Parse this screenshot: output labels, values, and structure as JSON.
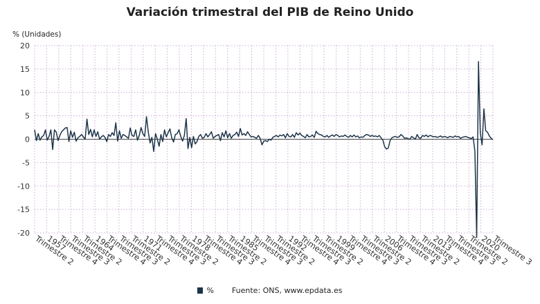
{
  "chart_data": {
    "type": "line",
    "title": "Variación trimestral del PIB de Reino Unido",
    "ylabel": "% (Unidades)",
    "xlabel": "",
    "ylim": [
      -20,
      20
    ],
    "yticks": [
      20,
      15,
      10,
      5,
      0,
      -5,
      -10,
      -15,
      -20
    ],
    "grid": true,
    "color": "#1d3449",
    "x_start": {
      "year": 1955,
      "quarter": 2
    },
    "x_end": {
      "year": 2022,
      "quarter": 3
    },
    "x_tick_labels": [
      "Trimestre 2",
      "1957",
      "Trimestre 4",
      "Trimestre 3",
      "Trimestre 2",
      "1964",
      "Trimestre 4",
      "Trimestre 3",
      "Trimestre 2",
      "1971",
      "Trimestre 4",
      "Trimestre 3",
      "Trimestre 2",
      "1978",
      "Trimestre 4",
      "Trimestre 3",
      "Trimestre 2",
      "1985",
      "Trimestre 4",
      "Trimestre 3",
      "Trimestre 2",
      "1992",
      "Trimestre 4",
      "Trimestre 3",
      "Trimestre 2",
      "1999",
      "Trimestre 4",
      "Trimestre 3",
      "Trimestre 2",
      "2006",
      "Trimestre 4",
      "Trimestre 3",
      "Trimestre 2",
      "2013",
      "Trimestre 4",
      "Trimestre 3",
      "Trimestre 2",
      "2020",
      "Trimestre 3"
    ],
    "legend": [
      "%"
    ],
    "series": [
      {
        "name": "%",
        "values": [
          2.0,
          -0.3,
          1.2,
          -0.2,
          0.5,
          0.8,
          2.0,
          -0.2,
          0.6,
          2.0,
          -2.2,
          2.0,
          1.5,
          -0.3,
          0.8,
          1.6,
          2.0,
          2.4,
          2.5,
          -0.5,
          1.8,
          0.4,
          1.5,
          -0.4,
          0.3,
          0.6,
          1.0,
          0.5,
          0.0,
          4.3,
          1.0,
          2.1,
          0.5,
          2.0,
          0.6,
          1.6,
          0.0,
          0.5,
          0.8,
          0.4,
          -0.5,
          1.0,
          0.6,
          1.4,
          0.8,
          3.5,
          -0.4,
          1.8,
          0.2,
          1.0,
          0.8,
          0.5,
          0.2,
          2.4,
          0.8,
          0.6,
          2.0,
          -0.2,
          0.8,
          2.5,
          1.2,
          0.6,
          4.8,
          1.5,
          -0.8,
          0.4,
          -2.6,
          1.2,
          0.0,
          -1.5,
          1.0,
          -0.5,
          2.0,
          0.5,
          1.4,
          2.2,
          0.3,
          -0.6,
          1.0,
          1.2,
          2.0,
          0.6,
          -0.4,
          0.8,
          4.4,
          -2.0,
          0.4,
          -1.8,
          0.6,
          -1.0,
          -0.5,
          0.6,
          1.0,
          0.2,
          0.4,
          1.2,
          0.5,
          1.0,
          1.6,
          0.2,
          0.6,
          0.8,
          1.0,
          -0.3,
          1.4,
          0.5,
          1.8,
          0.3,
          1.2,
          0.2,
          0.8,
          1.0,
          1.5,
          0.6,
          2.3,
          0.9,
          1.2,
          0.8,
          1.6,
          1.0,
          0.5,
          0.6,
          0.4,
          0.2,
          0.8,
          0.2,
          -1.2,
          -0.4,
          -0.3,
          -0.5,
          0.0,
          -0.2,
          0.4,
          0.6,
          0.8,
          0.5,
          0.9,
          0.7,
          1.0,
          0.3,
          1.2,
          0.6,
          0.5,
          1.0,
          0.4,
          1.4,
          0.9,
          1.3,
          0.8,
          0.6,
          0.3,
          1.0,
          0.5,
          0.6,
          0.9,
          0.4,
          1.7,
          1.2,
          1.0,
          0.9,
          0.6,
          0.5,
          0.8,
          0.4,
          0.7,
          0.9,
          0.6,
          1.0,
          0.8,
          0.5,
          0.7,
          0.6,
          0.9,
          0.6,
          0.4,
          0.8,
          0.5,
          0.9,
          0.5,
          0.7,
          0.3,
          0.5,
          0.4,
          0.8,
          1.0,
          0.9,
          0.6,
          0.8,
          0.6,
          0.7,
          0.5,
          0.8,
          0.3,
          -0.2,
          -1.6,
          -2.1,
          -1.9,
          -0.3,
          0.3,
          0.5,
          0.6,
          0.4,
          0.5,
          1.0,
          0.7,
          0.2,
          0.3,
          0.1,
          0.0,
          0.6,
          0.3,
          0.0,
          1.0,
          0.3,
          0.2,
          0.8,
          0.6,
          0.9,
          0.5,
          0.8,
          0.7,
          0.5,
          0.6,
          0.4,
          0.5,
          0.7,
          0.4,
          0.6,
          0.5,
          0.3,
          0.6,
          0.5,
          0.4,
          0.7,
          0.5,
          0.6,
          0.2,
          0.4,
          0.5,
          0.6,
          0.4,
          0.3,
          0.1,
          0.5,
          -2.5,
          -21.0,
          16.6,
          1.3,
          -1.2,
          6.5,
          1.8,
          1.5,
          0.7,
          0.2,
          -0.1
        ]
      }
    ]
  },
  "legend": {
    "label": "%",
    "source": "Fuente: ONS, www.epdata.es"
  }
}
